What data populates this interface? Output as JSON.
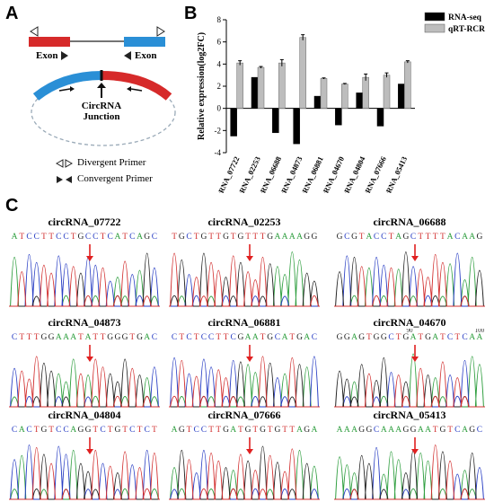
{
  "panelA": {
    "letter": "A",
    "exon_left": "Exon",
    "exon_right": "Exon",
    "junction_line1": "CircRNA",
    "junction_line2": "Junction",
    "legend_divergent": "Divergent Primer",
    "legend_convergent": "Convergent Primer",
    "colors": {
      "red_exon": "#d62a2a",
      "blue_exon": "#2a8fd6",
      "dashed": "#9aaab8"
    }
  },
  "panelB": {
    "letter": "B"
  },
  "chart_data": {
    "type": "bar",
    "ylabel": "Relative expression(log2FC)",
    "ylim": [
      -4,
      8
    ],
    "yticks": [
      -4,
      -2,
      0,
      2,
      4,
      6,
      8
    ],
    "categories": [
      "circRNA_07722",
      "circRNA_02253",
      "circRNA_06688",
      "circRNA_04873",
      "circRNA_06881",
      "circRNA_04670",
      "circRNA_04804",
      "circRNA_07666",
      "circRNA_05413"
    ],
    "series": [
      {
        "name": "RNA-seq",
        "color": "#000000",
        "values": [
          -2.5,
          2.8,
          -2.2,
          -3.2,
          1.1,
          -1.5,
          1.4,
          -1.6,
          2.2
        ]
      },
      {
        "name": "qRT-RCR",
        "color": "#bdbdbd",
        "values": [
          4.1,
          3.7,
          4.1,
          6.4,
          2.7,
          2.2,
          2.8,
          3.0,
          4.2
        ],
        "errors": [
          0.2,
          0.08,
          0.3,
          0.25,
          0.05,
          0.05,
          0.3,
          0.2,
          0.1
        ]
      }
    ],
    "legend_position": "top-right"
  },
  "panelC": {
    "letter": "C",
    "traces": [
      {
        "title": "circRNA_07722",
        "seq": "ATCCTTCCTGCCTCATCAGC"
      },
      {
        "title": "circRNA_02253",
        "seq": "TGCTGTTGTGTTTGAAAAGG"
      },
      {
        "title": "circRNA_06688",
        "seq": "GCGTACCTAGCTTTTACAAG"
      },
      {
        "title": "circRNA_04873",
        "seq": "CTTTGGAAATATTGGGTGAC"
      },
      {
        "title": "circRNA_06881",
        "seq": "CTCTCCTTCGAATGCATGAC"
      },
      {
        "title": "circRNA_04670",
        "seq": "GGAGTGGCTGATGATCTCAA",
        "pos_a": "90",
        "pos_b": "100"
      },
      {
        "title": "circRNA_04804",
        "seq": "CACTGTCCAGGTCTGTCTCT"
      },
      {
        "title": "circRNA_07666",
        "seq": "AGTCCTTGATGTGTGTTAGA"
      },
      {
        "title": "circRNA_05413",
        "seq": "AAAGGCAAAGGAATGTCAGC"
      }
    ],
    "base_colors": {
      "A": "#2e9e3e",
      "C": "#2a3fc4",
      "G": "#222222",
      "T": "#d23030"
    },
    "arrow_color": "#e02020"
  }
}
